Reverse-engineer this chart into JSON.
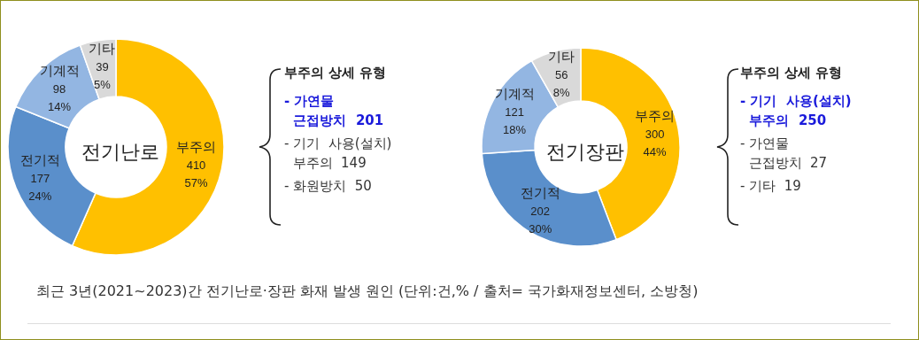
{
  "chart_data": [
    {
      "type": "donut",
      "title": "전기난로",
      "categories": [
        "부주의",
        "전기적",
        "기계적",
        "기타"
      ],
      "values": [
        410,
        177,
        98,
        39
      ],
      "colors": [
        "#ffc000",
        "#5a8fcb",
        "#93b6e2",
        "#d9d9d9"
      ],
      "value_labels": [
        "410\n57%",
        "177\n24%",
        "98\n14%",
        "39\n5%"
      ],
      "annotations": [
        "부주의 상세 유형",
        "- 가연물\n  근접방치  201",
        "- 기기  사용(설치)\n  부주의  149",
        "- 화원방치  50"
      ]
    },
    {
      "type": "donut",
      "title": "전기장판",
      "categories": [
        "부주의",
        "전기적",
        "기계적",
        "기타"
      ],
      "values": [
        300,
        202,
        121,
        56
      ],
      "colors": [
        "#ffc000",
        "#5a8fcb",
        "#93b6e2",
        "#d9d9d9"
      ],
      "value_labels": [
        "300\n44%",
        "202\n30%",
        "121\n18%",
        "56\n8%"
      ],
      "annotations": [
        "부주의 상세 유형",
        "- 기기  사용(설치)\n  부주의  250",
        "- 가연물\n  근접방치  27",
        "- 기타  19"
      ]
    },
    {
      "type": "other",
      "annotations": [
        "최근 3년(2021~2023)간 전기난로·장판 화재 발생 원인 (단위:건,% / 출처= 국가화재정보센터, 소방청)"
      ]
    }
  ]
}
